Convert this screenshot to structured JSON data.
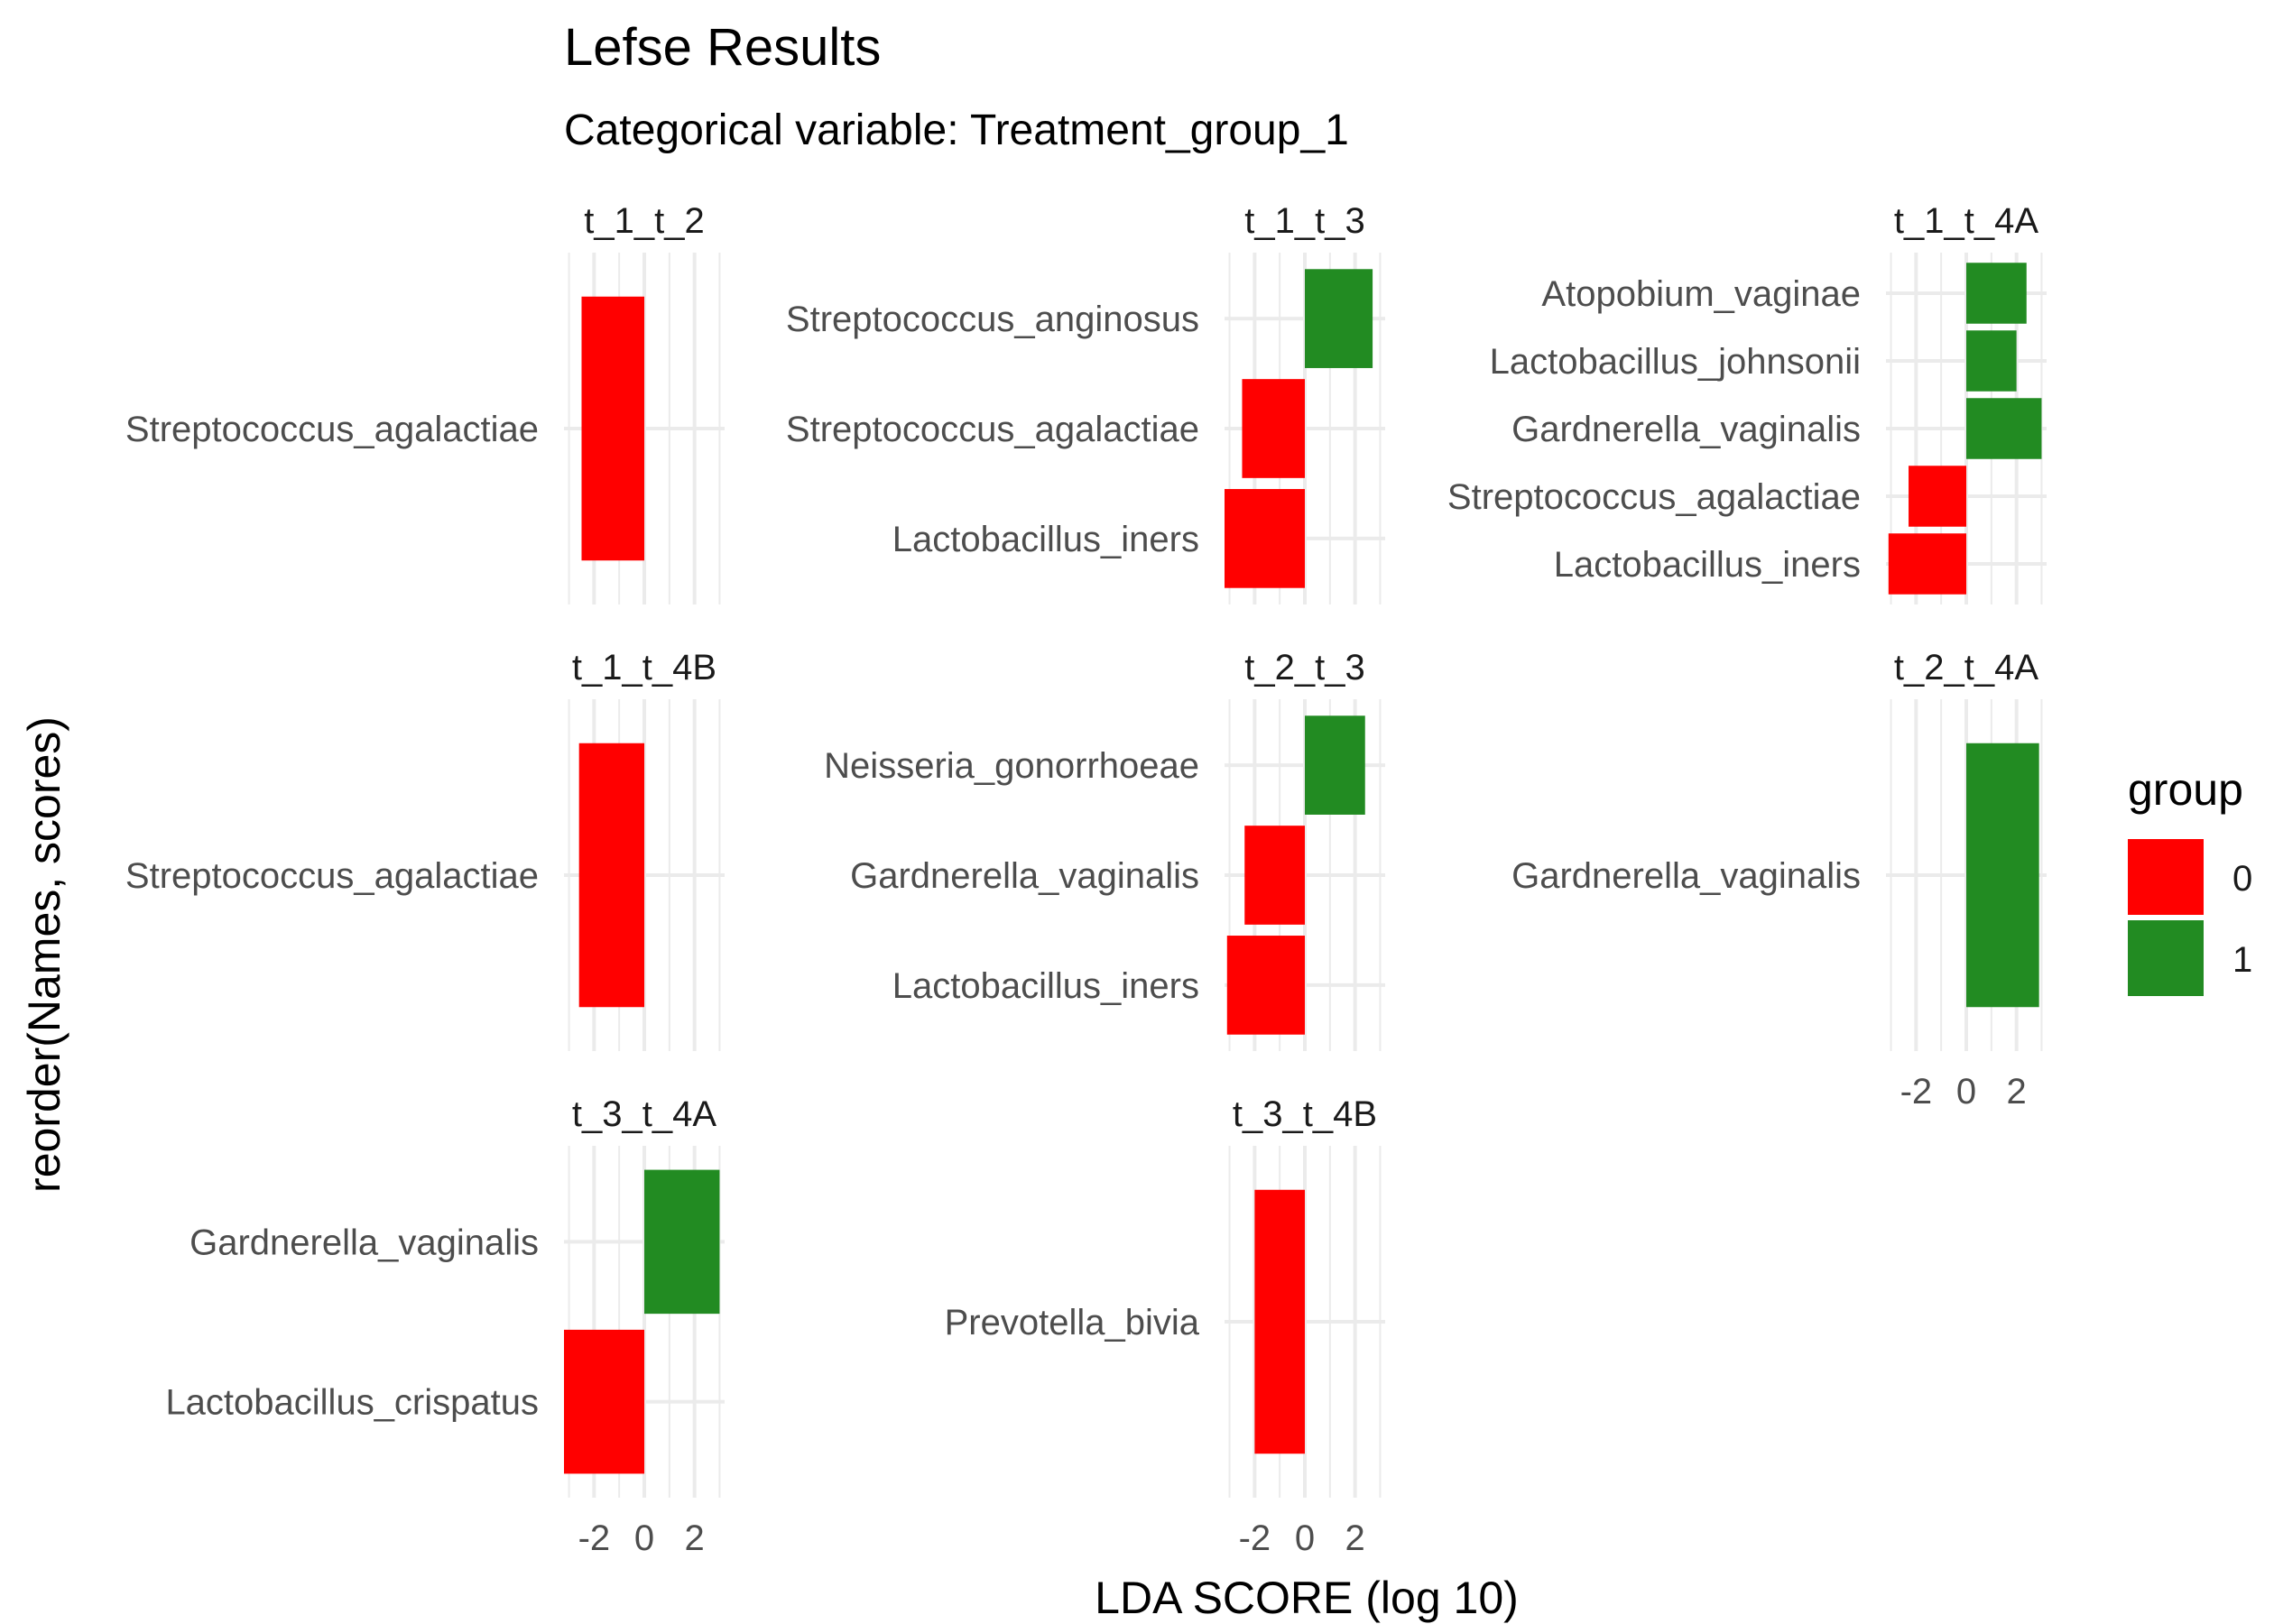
{
  "chart_data": {
    "type": "bar",
    "title": "Lefse Results",
    "subtitle": "Categorical variable: Treatment_group_1",
    "xlabel": "LDA SCORE (log 10)",
    "ylabel": "reorder(Names, scores)",
    "xlim": [
      -3.2,
      3.2
    ],
    "x_ticks": [
      -2,
      0,
      2
    ],
    "x_tick_labels": [
      "-2",
      "0",
      "2"
    ],
    "grid": true,
    "legend": {
      "title": "group",
      "placement": "right",
      "entries": [
        {
          "label": "0",
          "color": "#ff0000"
        },
        {
          "label": "1",
          "color": "#228b22"
        }
      ]
    },
    "facets": [
      {
        "name": "t_1_t_2",
        "bars": [
          {
            "label": "Streptococcus_agalactiae",
            "value": -2.5,
            "group": "0"
          }
        ]
      },
      {
        "name": "t_1_t_3",
        "bars": [
          {
            "label": "Streptococcus_anginosus",
            "value": 2.7,
            "group": "1"
          },
          {
            "label": "Streptococcus_agalactiae",
            "value": -2.5,
            "group": "0"
          },
          {
            "label": "Lactobacillus_iners",
            "value": -3.2,
            "group": "0"
          }
        ]
      },
      {
        "name": "t_1_t_4A",
        "bars": [
          {
            "label": "Atopobium_vaginae",
            "value": 2.4,
            "group": "1"
          },
          {
            "label": "Lactobacillus_johnsonii",
            "value": 2.0,
            "group": "1"
          },
          {
            "label": "Gardnerella_vaginalis",
            "value": 3.0,
            "group": "1"
          },
          {
            "label": "Streptococcus_agalactiae",
            "value": -2.3,
            "group": "0"
          },
          {
            "label": "Lactobacillus_iners",
            "value": -3.1,
            "group": "0"
          }
        ]
      },
      {
        "name": "t_1_t_4B",
        "bars": [
          {
            "label": "Streptococcus_agalactiae",
            "value": -2.6,
            "group": "0"
          }
        ]
      },
      {
        "name": "t_2_t_3",
        "bars": [
          {
            "label": "Neisseria_gonorrhoeae",
            "value": 2.4,
            "group": "1"
          },
          {
            "label": "Gardnerella_vaginalis",
            "value": -2.4,
            "group": "0"
          },
          {
            "label": "Lactobacillus_iners",
            "value": -3.1,
            "group": "0"
          }
        ]
      },
      {
        "name": "t_2_t_4A",
        "bars": [
          {
            "label": "Gardnerella_vaginalis",
            "value": 2.9,
            "group": "1"
          }
        ]
      },
      {
        "name": "t_3_t_4A",
        "bars": [
          {
            "label": "Gardnerella_vaginalis",
            "value": 3.0,
            "group": "1"
          },
          {
            "label": "Lactobacillus_crispatus",
            "value": -3.2,
            "group": "0"
          }
        ]
      },
      {
        "name": "t_3_t_4B",
        "bars": [
          {
            "label": "Prevotella_bivia",
            "value": -2.0,
            "group": "0"
          }
        ]
      }
    ]
  }
}
